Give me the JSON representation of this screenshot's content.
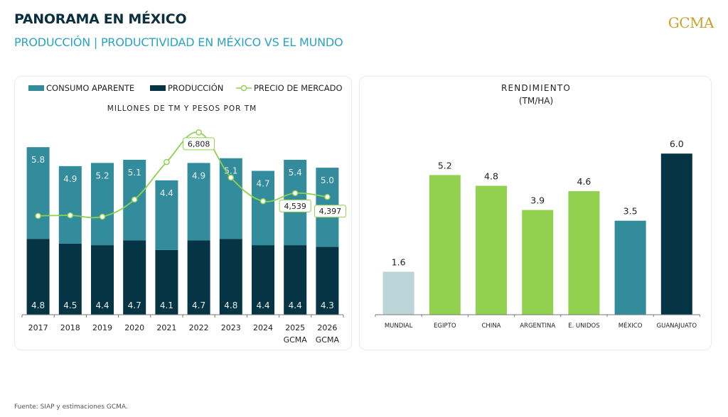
{
  "header": {
    "title": "PANORAMA EN MÉXICO",
    "subtitle": "PRODUCCIÓN | PRODUCTIVIDAD EN MÉXICO VS EL MUNDO",
    "logo": "GCMA"
  },
  "colors": {
    "consumo": "#338c9c",
    "produccion": "#053545",
    "precio": "#8ed14f",
    "mundial": "#bcd5d9",
    "pais": "#92d050",
    "mexico": "#338c9c",
    "guanajuato": "#053545",
    "title_dark": "#0b2f3f",
    "subtitle_teal": "#2aa3c2",
    "logo_gold": "#c9a227"
  },
  "chart_data": [
    {
      "type": "bar",
      "stacked": true,
      "title": "MILLONES DE TM Y PESOS POR TM",
      "legend": [
        "CONSUMO APARENTE",
        "PRODUCCIÓN",
        "PRECIO DE MERCADO"
      ],
      "legend_position": "top",
      "categories": [
        "2017",
        "2018",
        "2019",
        "2020",
        "2021",
        "2022",
        "2023",
        "2024",
        "2025",
        "2026"
      ],
      "category_sublabels": [
        "",
        "",
        "",
        "",
        "",
        "",
        "",
        "",
        "GCMA",
        "GCMA"
      ],
      "series": [
        {
          "name": "PRODUCCIÓN",
          "kind": "bar",
          "values": [
            4.8,
            4.5,
            4.4,
            4.7,
            4.1,
            4.7,
            4.8,
            4.4,
            4.4,
            4.3
          ]
        },
        {
          "name": "CONSUMO APARENTE",
          "kind": "bar",
          "values": [
            5.8,
            4.9,
            5.2,
            5.1,
            4.4,
            4.9,
            5.1,
            4.7,
            5.4,
            5.0
          ]
        },
        {
          "name": "PRECIO DE MERCADO",
          "kind": "line",
          "values": [
            3690,
            3710,
            3660,
            4300,
            5700,
            6808,
            5120,
            4240,
            4539,
            4397
          ],
          "labeled_points": {
            "2022": "6,808",
            "2025": "4,539",
            "2026": "4,397"
          }
        }
      ],
      "xlabel": "",
      "ylabel": "",
      "grid": false
    },
    {
      "type": "bar",
      "title": "RENDIMIENTO",
      "subtitle": "(TM/HA)",
      "categories": [
        "MUNDIAL",
        "EGIPTO",
        "CHINA",
        "ARGENTINA",
        "E. UNIDOS",
        "MÉXICO",
        "GUANAJUATO"
      ],
      "values": [
        1.6,
        5.2,
        4.8,
        3.9,
        4.6,
        3.5,
        6.0
      ],
      "value_labels": [
        "1.6",
        "5.2",
        "4.8",
        "3.9",
        "4.6",
        "3.5",
        "6.0"
      ],
      "bar_colors": [
        "#bcd5d9",
        "#92d050",
        "#92d050",
        "#92d050",
        "#92d050",
        "#338c9c",
        "#053545"
      ],
      "xlabel": "",
      "ylabel": "",
      "ylim": [
        0,
        6.0
      ],
      "grid": false
    }
  ],
  "footer": {
    "source": "Fuente: SIAP y estimaciones GCMA."
  }
}
